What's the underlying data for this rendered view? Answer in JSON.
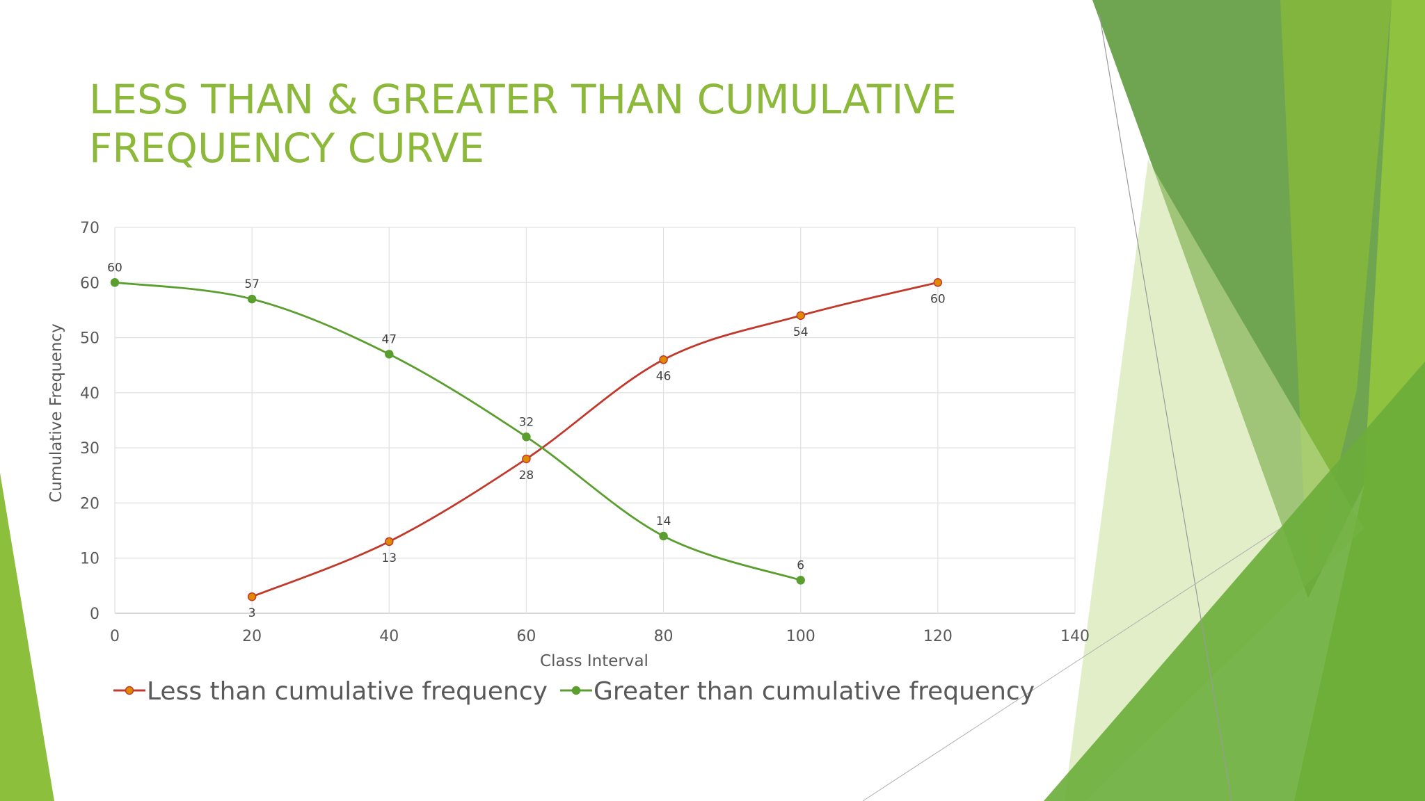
{
  "slide": {
    "title_line1": "LESS THAN & GREATER THAN CUMULATIVE",
    "title_line2": "FREQUENCY CURVE"
  },
  "colors": {
    "title": "#8cb93a",
    "less_than": "#c0392b",
    "less_than_marker": "#e08a00",
    "greater_than": "#5a9e2f",
    "grid": "#e2e2e2"
  },
  "chart_data": {
    "type": "line",
    "title": "",
    "xlabel": "Class Interval",
    "ylabel": "Cumulative Frequency",
    "xlim": [
      0,
      140
    ],
    "ylim": [
      0,
      70
    ],
    "xticks": [
      0,
      20,
      40,
      60,
      80,
      100,
      120,
      140
    ],
    "yticks": [
      0,
      10,
      20,
      30,
      40,
      50,
      60,
      70
    ],
    "grid": true,
    "legend_position": "bottom",
    "series": [
      {
        "name": "Less than cumulative frequency",
        "x": [
          20,
          40,
          60,
          80,
          100,
          120
        ],
        "values": [
          3,
          13,
          28,
          46,
          54,
          60
        ],
        "label_position": "below"
      },
      {
        "name": "Greater than cumulative frequency",
        "x": [
          0,
          20,
          40,
          60,
          80,
          100
        ],
        "values": [
          60,
          57,
          47,
          32,
          14,
          6
        ],
        "label_position": "above"
      }
    ]
  }
}
